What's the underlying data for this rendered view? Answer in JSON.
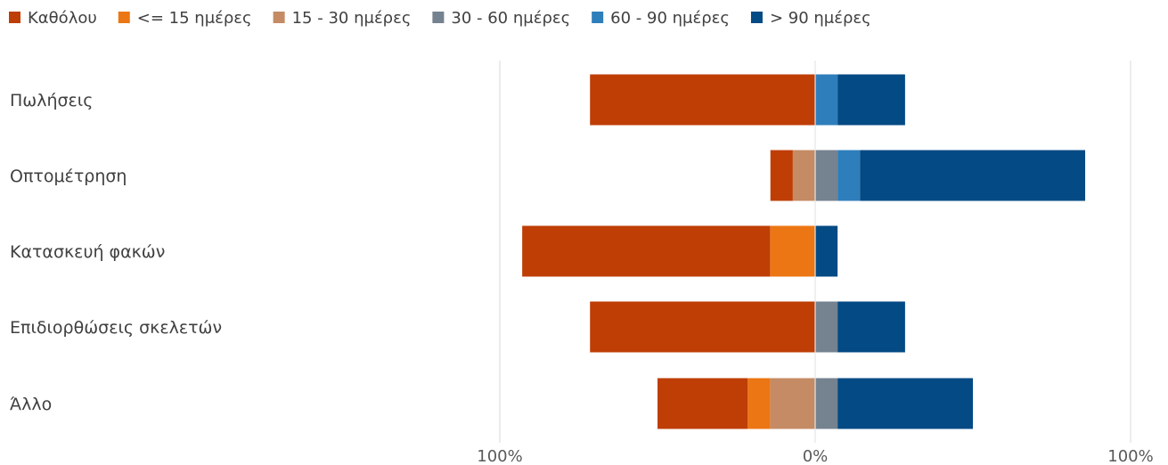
{
  "chart_data": {
    "type": "bar",
    "orientation": "horizontal",
    "stacking": "diverging",
    "legend_position": "top-left",
    "grid": true,
    "categories": [
      "Πωλήσεις",
      "Οπτομέτρηση",
      "Κατασκευή φακών",
      "Επιδιορθώσεις σκελετών",
      "Άλλο"
    ],
    "series": [
      {
        "name": "Καθόλου",
        "side": "negative",
        "color": "#BE3E06",
        "values": [
          71.4,
          7.1,
          78.6,
          71.4,
          28.6
        ]
      },
      {
        "name": "<= 15 ημέρες",
        "side": "negative",
        "color": "#EC7613",
        "values": [
          0,
          0,
          14.3,
          0,
          7.1
        ]
      },
      {
        "name": "15 - 30 ημέρες",
        "side": "negative",
        "color": "#C58B64",
        "values": [
          0,
          7.1,
          0,
          0,
          14.3
        ]
      },
      {
        "name": "30 - 60 ημέρες",
        "side": "positive",
        "color": "#75828F",
        "values": [
          0,
          7.1,
          0,
          7.1,
          7.1
        ]
      },
      {
        "name": "60 - 90 ημέρες",
        "side": "positive",
        "color": "#2E7EBB",
        "values": [
          7.1,
          7.1,
          0,
          0,
          0
        ]
      },
      {
        "name": "> 90 ημέρες",
        "side": "positive",
        "color": "#044A84",
        "values": [
          21.4,
          71.4,
          7.1,
          21.4,
          42.9
        ]
      }
    ],
    "x_ticks": [
      "100%",
      "0%",
      "100%"
    ],
    "xlim": [
      -100,
      100
    ]
  }
}
